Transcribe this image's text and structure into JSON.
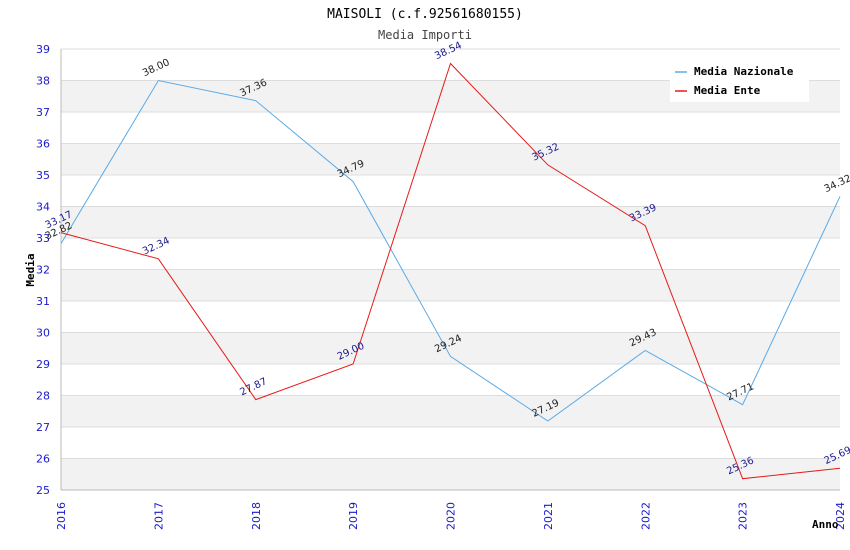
{
  "chart_data": {
    "type": "line",
    "title": "MAISOLI (c.f.92561680155)",
    "subtitle": "Media Importi",
    "xlabel": "Anno",
    "ylabel": "Media",
    "ylim": [
      25,
      39
    ],
    "yticks": [
      25,
      26,
      27,
      28,
      29,
      30,
      31,
      32,
      33,
      34,
      35,
      36,
      37,
      38,
      39
    ],
    "categories": [
      "2016",
      "2017",
      "2018",
      "2019",
      "2020",
      "2021",
      "2022",
      "2023",
      "2024"
    ],
    "series": [
      {
        "name": "Media Nazionale",
        "color": "#5aaae6",
        "values": [
          32.82,
          38.0,
          37.36,
          34.79,
          29.24,
          27.19,
          29.43,
          27.71,
          34.32
        ],
        "labels": [
          "32.82",
          "38.00",
          "37.36",
          "34.79",
          "29.24",
          "27.19",
          "29.43",
          "27.71",
          "34.32"
        ]
      },
      {
        "name": "Media Ente",
        "color": "#e61a1a",
        "values": [
          33.17,
          32.34,
          27.87,
          29.0,
          38.54,
          35.32,
          33.39,
          25.36,
          25.69
        ],
        "labels": [
          "33.17",
          "32.34",
          "27.87",
          "29.00",
          "38.54",
          "35.32",
          "33.39",
          "25.36",
          "25.69"
        ]
      }
    ],
    "grid": true,
    "legend_position": "top-right"
  }
}
